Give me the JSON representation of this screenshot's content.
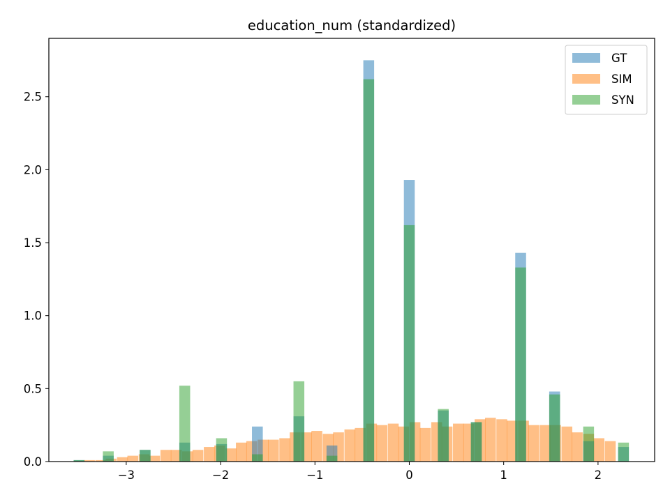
{
  "chart_data": {
    "type": "bar",
    "title": "education_num (standardized)",
    "xlabel": "",
    "ylabel": "",
    "xlim": [
      -3.82,
      2.6
    ],
    "ylim": [
      0,
      2.9
    ],
    "x_ticks": [
      {
        "value": -3,
        "label": "−3"
      },
      {
        "value": -2,
        "label": "−2"
      },
      {
        "value": -1,
        "label": "−1"
      },
      {
        "value": 0,
        "label": "0"
      },
      {
        "value": 1,
        "label": "1"
      },
      {
        "value": 2,
        "label": "2"
      }
    ],
    "y_ticks": [
      {
        "value": 0,
        "label": "0.0"
      },
      {
        "value": 0.5,
        "label": "0.5"
      },
      {
        "value": 1.0,
        "label": "1.0"
      },
      {
        "value": 1.5,
        "label": "1.5"
      },
      {
        "value": 2.0,
        "label": "2.0"
      },
      {
        "value": 2.5,
        "label": "2.5"
      }
    ],
    "grid": false,
    "legend_position": "top-right",
    "bin_width": 0.1148,
    "series": [
      {
        "name": "GT",
        "color": "#1f77b4",
        "alpha": 0.5,
        "bin_width": 0.1148,
        "x": [
          -3.5,
          -3.19,
          -2.8,
          -2.38,
          -1.99,
          -1.61,
          -1.17,
          -0.82,
          -0.43,
          0.0,
          0.36,
          0.71,
          1.18,
          1.54,
          1.9,
          2.27
        ],
        "values": [
          0.01,
          0.04,
          0.08,
          0.13,
          0.12,
          0.24,
          0.31,
          0.11,
          2.75,
          1.93,
          0.35,
          0.27,
          1.43,
          0.48,
          0.14,
          0.1
        ]
      },
      {
        "name": "SIM",
        "color": "#ff7f0e",
        "alpha": 0.5,
        "bin_width": 0.1148,
        "x": [
          -3.5,
          -3.39,
          -3.27,
          -3.16,
          -3.04,
          -2.93,
          -2.81,
          -2.7,
          -2.58,
          -2.47,
          -2.35,
          -2.24,
          -2.12,
          -2.01,
          -1.89,
          -1.78,
          -1.67,
          -1.55,
          -1.44,
          -1.32,
          -1.21,
          -1.09,
          -0.98,
          -0.86,
          -0.75,
          -0.63,
          -0.52,
          -0.4,
          -0.29,
          -0.17,
          -0.06,
          0.06,
          0.17,
          0.29,
          0.4,
          0.52,
          0.63,
          0.75,
          0.86,
          0.98,
          1.09,
          1.21,
          1.32,
          1.44,
          1.55,
          1.67,
          1.78,
          1.9,
          2.01,
          2.13,
          2.24
        ],
        "values": [
          0.0,
          0.01,
          0.01,
          0.02,
          0.03,
          0.04,
          0.05,
          0.04,
          0.08,
          0.08,
          0.07,
          0.08,
          0.1,
          0.11,
          0.09,
          0.13,
          0.14,
          0.15,
          0.15,
          0.16,
          0.2,
          0.2,
          0.21,
          0.19,
          0.2,
          0.22,
          0.23,
          0.26,
          0.25,
          0.26,
          0.24,
          0.27,
          0.23,
          0.27,
          0.24,
          0.26,
          0.26,
          0.29,
          0.3,
          0.29,
          0.28,
          0.28,
          0.25,
          0.25,
          0.25,
          0.24,
          0.2,
          0.19,
          0.16,
          0.14,
          0.0
        ]
      },
      {
        "name": "SYN",
        "color": "#2ca02c",
        "alpha": 0.5,
        "bin_width": 0.1148,
        "x": [
          -3.5,
          -3.19,
          -2.8,
          -2.38,
          -1.99,
          -1.61,
          -1.17,
          -0.82,
          -0.43,
          0.0,
          0.36,
          0.71,
          1.18,
          1.54,
          1.9,
          2.27
        ],
        "values": [
          0.01,
          0.07,
          0.08,
          0.52,
          0.16,
          0.05,
          0.55,
          0.04,
          2.62,
          1.62,
          0.36,
          0.27,
          1.33,
          0.46,
          0.24,
          0.13
        ]
      }
    ]
  }
}
